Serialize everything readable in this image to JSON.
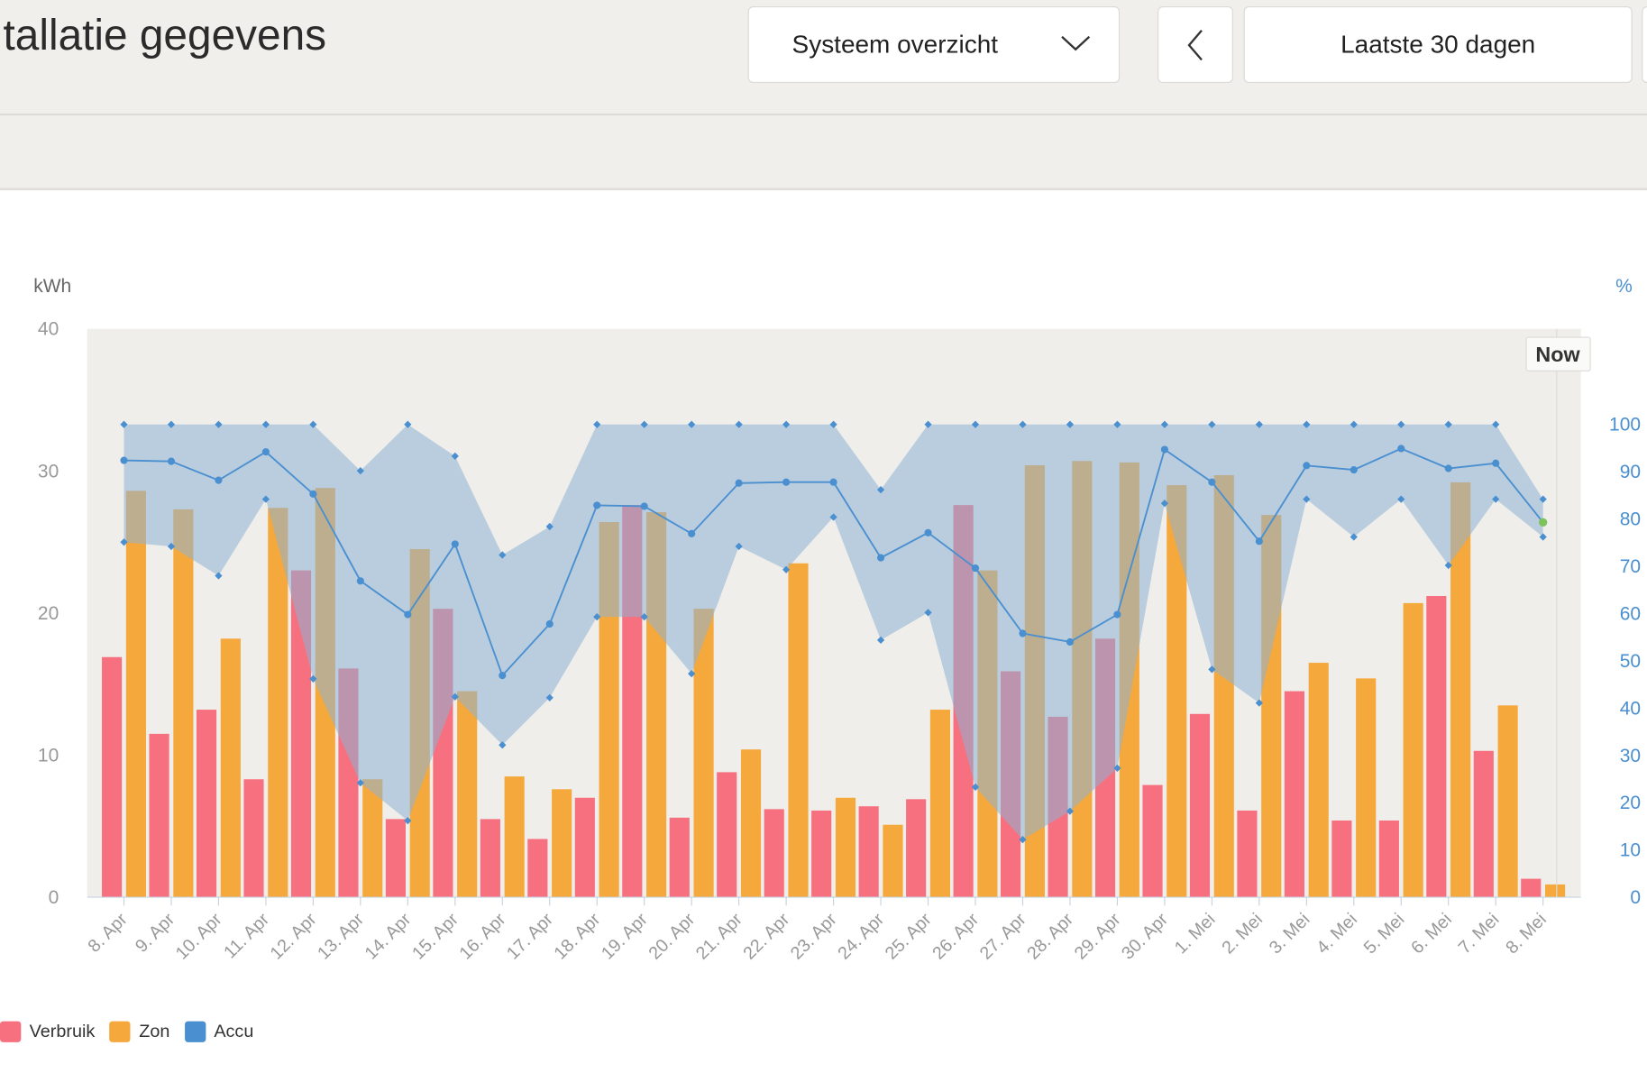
{
  "header": {
    "title": "tallatie gegevens",
    "view_select": "Systeem overzicht",
    "range_select": "Laatste 30 dagen"
  },
  "chart_data": {
    "type": "bar",
    "left_axis_label": "kWh",
    "right_axis_label": "%",
    "left_ylim": [
      0,
      40
    ],
    "left_ticks": [
      "0",
      "10",
      "20",
      "30",
      "40"
    ],
    "right_ylim": [
      0,
      100
    ],
    "right_ticks": [
      "0",
      "10",
      "20",
      "30",
      "40",
      "50",
      "60",
      "70",
      "80",
      "90",
      "100"
    ],
    "now_label": "Now",
    "grid": false,
    "legend_position": "bottom-left",
    "categories": [
      "8. Apr",
      "9. Apr",
      "10. Apr",
      "11. Apr",
      "12. Apr",
      "13. Apr",
      "14. Apr",
      "15. Apr",
      "16. Apr",
      "17. Apr",
      "18. Apr",
      "19. Apr",
      "20. Apr",
      "21. Apr",
      "22. Apr",
      "23. Apr",
      "24. Apr",
      "25. Apr",
      "26. Apr",
      "27. Apr",
      "28. Apr",
      "29. Apr",
      "30. Apr",
      "1. Mei",
      "2. Mei",
      "3. Mei",
      "4. Mei",
      "5. Mei",
      "6. Mei",
      "7. Mei",
      "8. Mei"
    ],
    "series": [
      {
        "name": "Verbruik",
        "type": "bar",
        "axis": "kWh",
        "color": "#f7707f",
        "values": [
          16.9,
          11.5,
          13.2,
          8.3,
          23.0,
          16.1,
          5.5,
          20.3,
          5.5,
          4.1,
          7.0,
          27.6,
          5.6,
          8.8,
          6.2,
          6.1,
          6.4,
          6.9,
          27.6,
          15.9,
          12.7,
          18.2,
          7.9,
          12.9,
          6.1,
          14.5,
          5.4,
          5.4,
          21.2,
          10.3,
          1.3
        ]
      },
      {
        "name": "Zon",
        "type": "bar",
        "axis": "kWh",
        "color": "#f5a83c",
        "values": [
          28.6,
          27.3,
          18.2,
          27.4,
          28.8,
          8.3,
          24.5,
          14.5,
          8.5,
          7.6,
          26.4,
          27.1,
          20.3,
          10.4,
          23.5,
          7.0,
          5.1,
          13.2,
          23.0,
          30.4,
          30.7,
          30.6,
          29.0,
          29.7,
          26.9,
          16.5,
          15.4,
          20.7,
          29.2,
          13.5,
          0.9
        ]
      },
      {
        "name": "Accu",
        "type": "line",
        "axis": "%",
        "color": "#4a8fd0",
        "values": [
          92.4,
          92.2,
          88.2,
          94.2,
          85.3,
          66.9,
          59.8,
          74.7,
          46.9,
          57.8,
          82.9,
          82.7,
          76.9,
          87.6,
          87.8,
          87.8,
          71.8,
          77.1,
          69.6,
          55.8,
          54.0,
          59.8,
          94.7,
          87.8,
          75.3,
          91.3,
          90.4,
          94.9,
          90.7,
          91.8,
          79.3
        ],
        "max": [
          100,
          100,
          100,
          100,
          100,
          90.2,
          100,
          93.3,
          72.4,
          78.4,
          100,
          100,
          100,
          100,
          100,
          100,
          86.2,
          100,
          100,
          100,
          100,
          100,
          100,
          100,
          100,
          100,
          100,
          100,
          100,
          100,
          84.2
        ],
        "min": [
          75.1,
          74.2,
          68.0,
          84.2,
          46.2,
          24.2,
          16.2,
          42.4,
          32.2,
          42.2,
          59.3,
          59.3,
          47.3,
          74.2,
          69.3,
          80.4,
          54.4,
          60.2,
          23.3,
          12.2,
          18.2,
          27.3,
          83.3,
          48.2,
          41.1,
          84.2,
          76.2,
          84.2,
          70.2,
          84.2,
          76.2
        ]
      }
    ]
  },
  "legend": [
    {
      "label": "Verbruik",
      "color": "#f7707f"
    },
    {
      "label": "Zon",
      "color": "#f5a83c"
    },
    {
      "label": "Accu",
      "color": "#4a8fd0"
    }
  ]
}
